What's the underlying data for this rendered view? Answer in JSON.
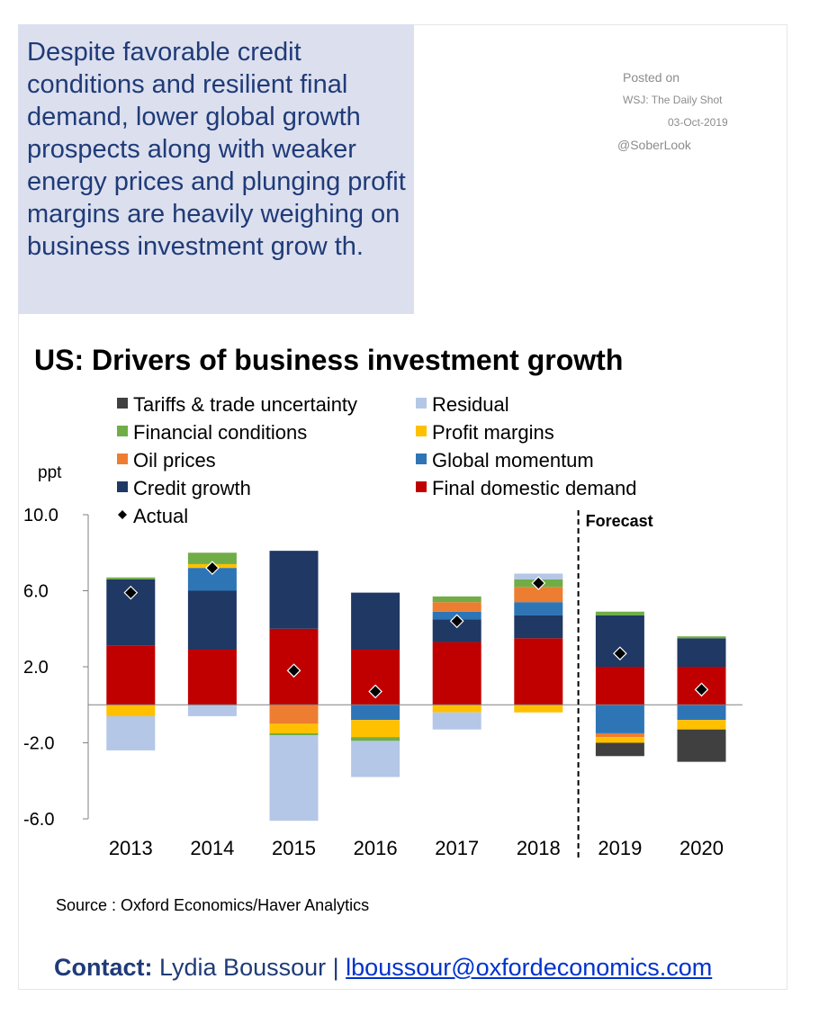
{
  "headline": "Despite favorable credit conditions and resilient final demand, lower global growth prospects along with weaker energy prices and plunging profit margins are heavily weighing on business investment grow th.",
  "posted": {
    "line1": "Posted on",
    "line2": "WSJ: The Daily Shot",
    "line3": "03-Oct-2019",
    "line4": "@SoberLook"
  },
  "source": "Source : Oxford Economics/Haver Analytics",
  "contact": {
    "label": "Contact:",
    "name": "Lydia Boussour |",
    "email": "lboussour@oxfordeconomics.com"
  },
  "chart_data": {
    "type": "bar",
    "stacked": true,
    "title": "US: Drivers of business investment growth",
    "ylabel": "ppt",
    "ylim": [
      -6.0,
      10.0
    ],
    "yticks": [
      10.0,
      6.0,
      2.0,
      -2.0,
      -6.0
    ],
    "ytick_labels": [
      "10.0",
      "6.0",
      "2.0",
      "-2.0",
      "-6.0"
    ],
    "categories": [
      "2013",
      "2014",
      "2015",
      "2016",
      "2017",
      "2018",
      "2019",
      "2020"
    ],
    "forecast_label": "Forecast",
    "forecast_starts_at": "2019",
    "legend_position": "top",
    "series": [
      {
        "name": "Final domestic demand",
        "color": "#c00000",
        "values": [
          3.1,
          2.9,
          4.0,
          2.9,
          3.3,
          3.5,
          2.0,
          2.0
        ]
      },
      {
        "name": "Credit growth",
        "color": "#1f3864",
        "values": [
          3.5,
          3.1,
          4.1,
          3.0,
          1.2,
          1.2,
          2.7,
          1.5
        ]
      },
      {
        "name": "Global momentum",
        "color": "#2e75b6",
        "values": [
          0,
          1.2,
          0,
          -0.8,
          0.4,
          0.7,
          -1.5,
          -0.8
        ]
      },
      {
        "name": "Oil prices",
        "color": "#ed7d31",
        "values": [
          0,
          0,
          -1.0,
          0,
          0.5,
          0.8,
          -0.2,
          0
        ]
      },
      {
        "name": "Profit margins",
        "color": "#ffc000",
        "values": [
          -0.6,
          0.2,
          -0.5,
          -0.9,
          -0.4,
          -0.4,
          -0.3,
          -0.5
        ]
      },
      {
        "name": "Financial conditions",
        "color": "#70ad47",
        "values": [
          0.1,
          0.6,
          -0.1,
          -0.2,
          0.3,
          0.4,
          0.2,
          0.1
        ]
      },
      {
        "name": "Residual",
        "color": "#b4c7e7",
        "values": [
          -1.8,
          -0.6,
          -4.5,
          -1.9,
          -0.9,
          0.3,
          0,
          0
        ]
      },
      {
        "name": "Tariffs & trade uncertainty",
        "color": "#404040",
        "values": [
          0,
          0,
          0,
          0,
          0,
          0,
          -0.7,
          -1.7
        ]
      }
    ],
    "actual": {
      "name": "Actual",
      "values": [
        5.9,
        7.2,
        1.8,
        0.7,
        4.4,
        6.4,
        2.7,
        0.8
      ]
    },
    "legend_items": [
      {
        "name": "Tariffs & trade uncertainty",
        "color": "#404040",
        "marker": "square"
      },
      {
        "name": "Residual",
        "color": "#b4c7e7",
        "marker": "square"
      },
      {
        "name": "Financial conditions",
        "color": "#70ad47",
        "marker": "square"
      },
      {
        "name": "Profit margins",
        "color": "#ffc000",
        "marker": "square"
      },
      {
        "name": "Oil prices",
        "color": "#ed7d31",
        "marker": "square"
      },
      {
        "name": "Global momentum",
        "color": "#2e75b6",
        "marker": "square"
      },
      {
        "name": "Credit growth",
        "color": "#1f3864",
        "marker": "square"
      },
      {
        "name": "Final domestic demand",
        "color": "#c00000",
        "marker": "square"
      },
      {
        "name": "Actual",
        "color": "#000000",
        "marker": "diamond"
      }
    ]
  }
}
